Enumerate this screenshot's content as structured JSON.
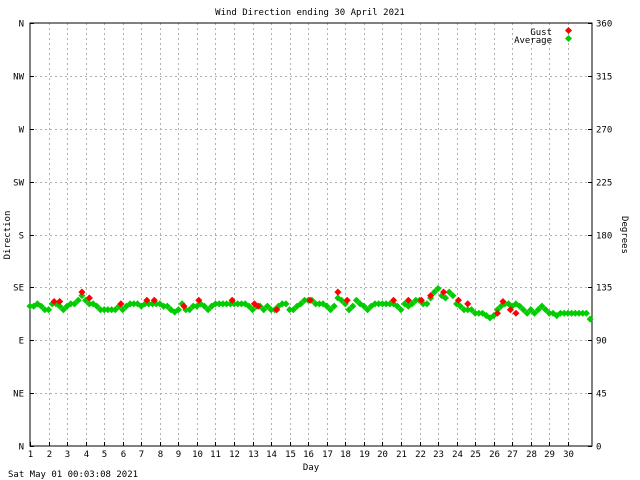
{
  "chart_data": {
    "type": "scatter",
    "title": "Wind Direction ending 30 April 2021",
    "xlabel": "Day",
    "ylabel": "Direction",
    "y2label": "Degrees",
    "xlim": [
      1,
      31.3
    ],
    "ylim": [
      0,
      360
    ],
    "x_ticks": [
      "1",
      "2",
      "3",
      "4",
      "5",
      "6",
      "7",
      "8",
      "9",
      "10",
      "11",
      "12",
      "13",
      "14",
      "15",
      "16",
      "17",
      "18",
      "19",
      "20",
      "21",
      "22",
      "23",
      "24",
      "25",
      "26",
      "27",
      "28",
      "29",
      "30"
    ],
    "y_left_ticks": [
      {
        "value": 0,
        "label": "N"
      },
      {
        "value": 45,
        "label": "NE"
      },
      {
        "value": 90,
        "label": "E"
      },
      {
        "value": 135,
        "label": "SE"
      },
      {
        "value": 180,
        "label": "S"
      },
      {
        "value": 225,
        "label": "SW"
      },
      {
        "value": 270,
        "label": "W"
      },
      {
        "value": 315,
        "label": "NW"
      },
      {
        "value": 360,
        "label": "N"
      }
    ],
    "y_right_ticks": [
      "0",
      "45",
      "90",
      "135",
      "180",
      "225",
      "270",
      "315",
      "360"
    ],
    "grid": true,
    "legend_position": "top-right",
    "series": [
      {
        "name": "Gust",
        "color": "#ff0000",
        "points": [
          [
            2.3,
            123
          ],
          [
            2.6,
            123
          ],
          [
            3.8,
            131
          ],
          [
            4.2,
            126
          ],
          [
            5.9,
            121
          ],
          [
            7.3,
            124
          ],
          [
            7.7,
            124
          ],
          [
            9.3,
            119
          ],
          [
            10.1,
            124
          ],
          [
            11.9,
            124
          ],
          [
            13.1,
            121
          ],
          [
            13.3,
            119
          ],
          [
            14.3,
            116
          ],
          [
            16.1,
            124
          ],
          [
            17.6,
            131
          ],
          [
            18.1,
            124
          ],
          [
            20.6,
            124
          ],
          [
            21.4,
            124
          ],
          [
            22.1,
            124
          ],
          [
            22.6,
            128
          ],
          [
            23.3,
            131
          ],
          [
            24.1,
            124
          ],
          [
            24.6,
            121
          ],
          [
            26.2,
            113
          ],
          [
            26.5,
            123
          ],
          [
            26.9,
            116
          ],
          [
            27.2,
            113
          ]
        ]
      },
      {
        "name": "Average",
        "color": "#00cc00",
        "points": [
          [
            1.0,
            119
          ],
          [
            1.2,
            119
          ],
          [
            1.4,
            121
          ],
          [
            1.6,
            119
          ],
          [
            1.8,
            116
          ],
          [
            2.0,
            116
          ],
          [
            2.2,
            121
          ],
          [
            2.4,
            121
          ],
          [
            2.6,
            119
          ],
          [
            2.8,
            116
          ],
          [
            3.0,
            119
          ],
          [
            3.2,
            121
          ],
          [
            3.4,
            121
          ],
          [
            3.6,
            124
          ],
          [
            3.8,
            128
          ],
          [
            4.0,
            124
          ],
          [
            4.2,
            121
          ],
          [
            4.4,
            121
          ],
          [
            4.6,
            119
          ],
          [
            4.8,
            116
          ],
          [
            5.0,
            116
          ],
          [
            5.2,
            116
          ],
          [
            5.4,
            116
          ],
          [
            5.6,
            116
          ],
          [
            5.8,
            119
          ],
          [
            6.0,
            116
          ],
          [
            6.2,
            119
          ],
          [
            6.4,
            121
          ],
          [
            6.6,
            121
          ],
          [
            6.8,
            121
          ],
          [
            7.0,
            119
          ],
          [
            7.2,
            121
          ],
          [
            7.4,
            121
          ],
          [
            7.6,
            121
          ],
          [
            7.8,
            121
          ],
          [
            8.0,
            121
          ],
          [
            8.2,
            119
          ],
          [
            8.4,
            119
          ],
          [
            8.6,
            116
          ],
          [
            8.8,
            114
          ],
          [
            9.0,
            116
          ],
          [
            9.2,
            121
          ],
          [
            9.4,
            116
          ],
          [
            9.6,
            116
          ],
          [
            9.8,
            119
          ],
          [
            10.0,
            119
          ],
          [
            10.2,
            121
          ],
          [
            10.4,
            119
          ],
          [
            10.6,
            116
          ],
          [
            10.8,
            119
          ],
          [
            11.0,
            121
          ],
          [
            11.2,
            121
          ],
          [
            11.4,
            121
          ],
          [
            11.6,
            121
          ],
          [
            11.8,
            121
          ],
          [
            12.0,
            121
          ],
          [
            12.2,
            121
          ],
          [
            12.4,
            121
          ],
          [
            12.6,
            121
          ],
          [
            12.8,
            119
          ],
          [
            13.0,
            116
          ],
          [
            13.2,
            119
          ],
          [
            13.4,
            119
          ],
          [
            13.6,
            116
          ],
          [
            13.8,
            119
          ],
          [
            14.0,
            116
          ],
          [
            14.2,
            116
          ],
          [
            14.4,
            119
          ],
          [
            14.6,
            121
          ],
          [
            14.8,
            121
          ],
          [
            15.0,
            116
          ],
          [
            15.2,
            116
          ],
          [
            15.4,
            119
          ],
          [
            15.6,
            121
          ],
          [
            15.8,
            124
          ],
          [
            16.0,
            124
          ],
          [
            16.2,
            124
          ],
          [
            16.4,
            121
          ],
          [
            16.6,
            121
          ],
          [
            16.8,
            121
          ],
          [
            17.0,
            119
          ],
          [
            17.2,
            116
          ],
          [
            17.4,
            119
          ],
          [
            17.6,
            126
          ],
          [
            17.8,
            124
          ],
          [
            18.0,
            121
          ],
          [
            18.2,
            116
          ],
          [
            18.4,
            119
          ],
          [
            18.6,
            124
          ],
          [
            18.8,
            121
          ],
          [
            19.0,
            119
          ],
          [
            19.2,
            116
          ],
          [
            19.4,
            119
          ],
          [
            19.6,
            121
          ],
          [
            19.8,
            121
          ],
          [
            20.0,
            121
          ],
          [
            20.2,
            121
          ],
          [
            20.4,
            121
          ],
          [
            20.6,
            121
          ],
          [
            20.8,
            119
          ],
          [
            21.0,
            116
          ],
          [
            21.2,
            121
          ],
          [
            21.4,
            119
          ],
          [
            21.6,
            121
          ],
          [
            21.8,
            124
          ],
          [
            22.0,
            124
          ],
          [
            22.2,
            121
          ],
          [
            22.4,
            121
          ],
          [
            22.6,
            126
          ],
          [
            22.8,
            131
          ],
          [
            23.0,
            134
          ],
          [
            23.2,
            128
          ],
          [
            23.4,
            126
          ],
          [
            23.6,
            131
          ],
          [
            23.8,
            128
          ],
          [
            24.0,
            121
          ],
          [
            24.2,
            119
          ],
          [
            24.4,
            116
          ],
          [
            24.6,
            116
          ],
          [
            24.8,
            116
          ],
          [
            25.0,
            113
          ],
          [
            25.2,
            113
          ],
          [
            25.4,
            113
          ],
          [
            25.6,
            111
          ],
          [
            25.8,
            109
          ],
          [
            26.0,
            111
          ],
          [
            26.2,
            116
          ],
          [
            26.4,
            119
          ],
          [
            26.6,
            121
          ],
          [
            26.8,
            121
          ],
          [
            27.0,
            119
          ],
          [
            27.2,
            121
          ],
          [
            27.4,
            119
          ],
          [
            27.6,
            116
          ],
          [
            27.8,
            113
          ],
          [
            28.0,
            116
          ],
          [
            28.2,
            113
          ],
          [
            28.4,
            116
          ],
          [
            28.6,
            119
          ],
          [
            28.8,
            116
          ],
          [
            29.0,
            113
          ],
          [
            29.2,
            113
          ],
          [
            29.4,
            111
          ],
          [
            29.6,
            113
          ],
          [
            29.8,
            113
          ],
          [
            30.0,
            113
          ],
          [
            30.2,
            113
          ],
          [
            30.4,
            113
          ],
          [
            30.6,
            113
          ],
          [
            30.8,
            113
          ],
          [
            31.0,
            113
          ],
          [
            31.2,
            108
          ]
        ]
      }
    ]
  },
  "footer": {
    "timestamp": "Sat May 01 00:03:08 2021"
  }
}
